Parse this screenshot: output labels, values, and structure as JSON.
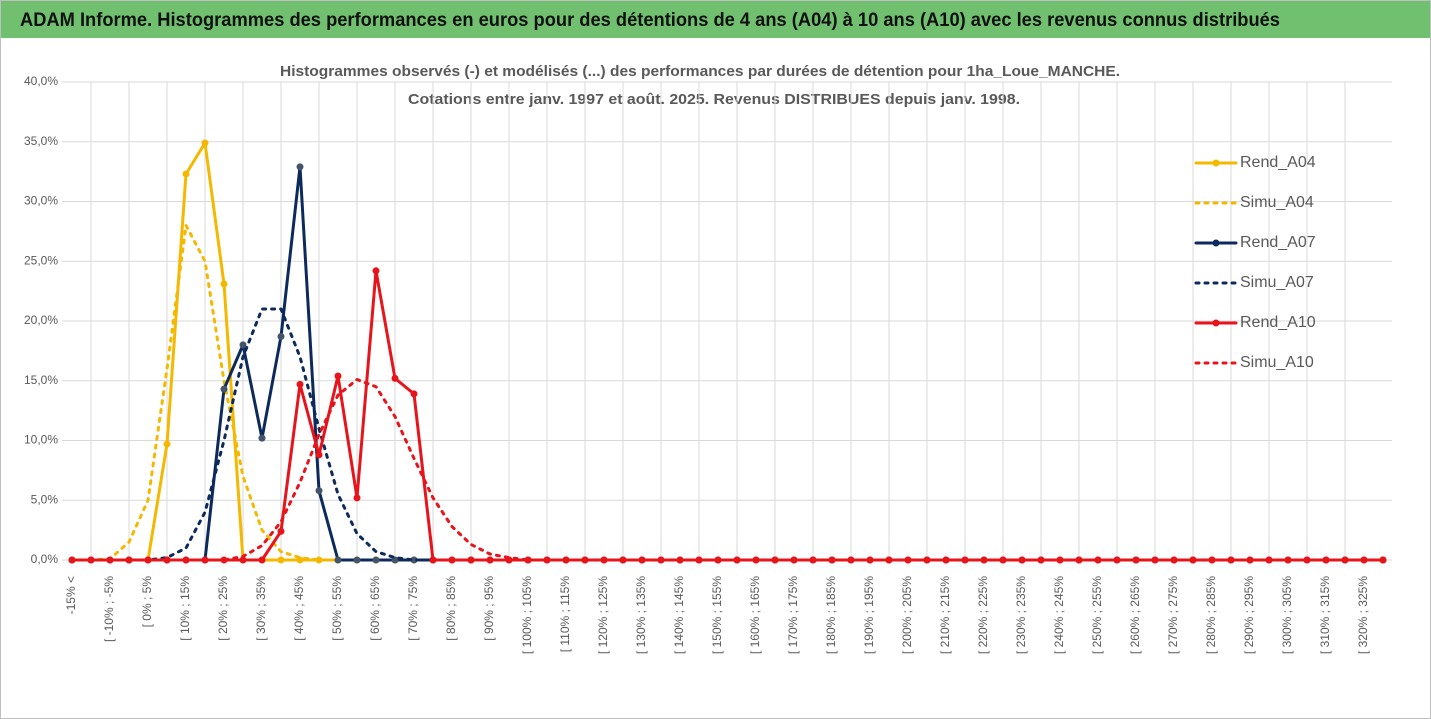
{
  "header": {
    "title": "ADAM Informe. Histogrammes des performances en euros pour des détentions de 4 ans (A04) à 10 ans (A10) avec les revenus connus distribués"
  },
  "chart_data": {
    "type": "line",
    "title": [
      "Histogrammes observés (-) et modélisés (...) des performances par durées de détention pour 1ha_Loue_MANCHE.",
      "Cotations entre janv. 1997 et août. 2025. Revenus DISTRIBUES depuis janv. 1998."
    ],
    "categories": [
      "-15% <",
      null,
      "[ -10% ; -5%",
      null,
      "[ 0% ; 5%",
      null,
      "[ 10% ; 15%",
      null,
      "[ 20% ; 25%",
      null,
      "[ 30% ; 35%",
      null,
      "[ 40% ; 45%",
      null,
      "[ 50% ; 55%",
      null,
      "[ 60% ; 65%",
      null,
      "[ 70% ; 75%",
      null,
      "[ 80% ; 85%",
      null,
      "[ 90% ; 95%",
      null,
      "[ 100% ; 105%",
      null,
      "[ 110% ; 115%",
      null,
      "[ 120% ; 125%",
      null,
      "[ 130% ; 135%",
      null,
      "[ 140% ; 145%",
      null,
      "[ 150% ; 155%",
      null,
      "[ 160% ; 165%",
      null,
      "[ 170% ; 175%",
      null,
      "[ 180% ; 185%",
      null,
      "[ 190% ; 195%",
      null,
      "[ 200% ; 205%",
      null,
      "[ 210% ; 215%",
      null,
      "[ 220% ; 225%",
      null,
      "[ 230% ; 235%",
      null,
      "[ 240% ; 245%",
      null,
      "[ 250% ; 255%",
      null,
      "[ 260% ; 265%",
      null,
      "[ 270% ; 275%",
      null,
      "[ 280% ; 285%",
      null,
      "[ 290% ; 295%",
      null,
      "[ 300% ; 305%",
      null,
      "[ 310% ; 315%",
      null,
      "[ 320% ; 325%",
      null
    ],
    "series": [
      {
        "name": "Rend_A04",
        "color": "#f5b800",
        "dash": false,
        "values": [
          0,
          0,
          0,
          0,
          0,
          9.7,
          32.3,
          34.9,
          23.1,
          0,
          0,
          0,
          0,
          0,
          0,
          0,
          0,
          0,
          0,
          0,
          0,
          0,
          0,
          0,
          0,
          0,
          0,
          0,
          0,
          0,
          0,
          0,
          0,
          0,
          0,
          0,
          0,
          0,
          0,
          0,
          0,
          0,
          0,
          0,
          0,
          0,
          0,
          0,
          0,
          0,
          0,
          0,
          0,
          0,
          0,
          0,
          0,
          0,
          0,
          0,
          0,
          0,
          0,
          0,
          0,
          0,
          0,
          0,
          0,
          0
        ]
      },
      {
        "name": "Simu_A04",
        "color": "#f5b800",
        "dash": true,
        "values": [
          0,
          0,
          0.1,
          1.5,
          5,
          16,
          28,
          25,
          15,
          7,
          2.5,
          0.7,
          0.2,
          0,
          0,
          0,
          0,
          0,
          0,
          0,
          0,
          0,
          0,
          0,
          0,
          0,
          0,
          0,
          0,
          0,
          0,
          0,
          0,
          0,
          0,
          0,
          0,
          0,
          0,
          0,
          0,
          0,
          0,
          0,
          0,
          0,
          0,
          0,
          0,
          0,
          0,
          0,
          0,
          0,
          0,
          0,
          0,
          0,
          0,
          0,
          0,
          0,
          0,
          0,
          0,
          0,
          0,
          0,
          0,
          0
        ]
      },
      {
        "name": "Rend_A07",
        "color": "#0d2a5c",
        "dash": false,
        "values": [
          0,
          0,
          0,
          0,
          0,
          0,
          0,
          0,
          14.3,
          18,
          10.2,
          18.7,
          32.9,
          5.8,
          0,
          0,
          0,
          0,
          0,
          0,
          0,
          0,
          0,
          0,
          0,
          0,
          0,
          0,
          0,
          0,
          0,
          0,
          0,
          0,
          0,
          0,
          0,
          0,
          0,
          0,
          0,
          0,
          0,
          0,
          0,
          0,
          0,
          0,
          0,
          0,
          0,
          0,
          0,
          0,
          0,
          0,
          0,
          0,
          0,
          0,
          0,
          0,
          0,
          0,
          0,
          0,
          0,
          0,
          0,
          0
        ]
      },
      {
        "name": "Simu_A07",
        "color": "#0d2a5c",
        "dash": true,
        "values": [
          0,
          0,
          0,
          0,
          0,
          0.2,
          1,
          4,
          10,
          17,
          21,
          21,
          17,
          11,
          5.5,
          2.2,
          0.7,
          0.2,
          0,
          0,
          0,
          0,
          0,
          0,
          0,
          0,
          0,
          0,
          0,
          0,
          0,
          0,
          0,
          0,
          0,
          0,
          0,
          0,
          0,
          0,
          0,
          0,
          0,
          0,
          0,
          0,
          0,
          0,
          0,
          0,
          0,
          0,
          0,
          0,
          0,
          0,
          0,
          0,
          0,
          0,
          0,
          0,
          0,
          0,
          0,
          0,
          0,
          0,
          0,
          0
        ]
      },
      {
        "name": "Rend_A10",
        "color": "#e8141b",
        "dash": false,
        "values": [
          0,
          0,
          0,
          0,
          0,
          0,
          0,
          0,
          0,
          0,
          0,
          2.4,
          14.7,
          8.8,
          15.4,
          5.2,
          24.2,
          15.2,
          13.9,
          0,
          0,
          0,
          0,
          0,
          0,
          0,
          0,
          0,
          0,
          0,
          0,
          0,
          0,
          0,
          0,
          0,
          0,
          0,
          0,
          0,
          0,
          0,
          0,
          0,
          0,
          0,
          0,
          0,
          0,
          0,
          0,
          0,
          0,
          0,
          0,
          0,
          0,
          0,
          0,
          0,
          0,
          0,
          0,
          0,
          0,
          0,
          0,
          0,
          0,
          0
        ]
      },
      {
        "name": "Simu_A10",
        "color": "#e8141b",
        "dash": true,
        "values": [
          0,
          0,
          0,
          0,
          0,
          0,
          0,
          0,
          0,
          0.3,
          1.2,
          3.2,
          6.5,
          10.5,
          13.8,
          15.1,
          14.5,
          12,
          8.5,
          5.2,
          2.8,
          1.3,
          0.5,
          0.2,
          0,
          0,
          0,
          0,
          0,
          0,
          0,
          0,
          0,
          0,
          0,
          0,
          0,
          0,
          0,
          0,
          0,
          0,
          0,
          0,
          0,
          0,
          0,
          0,
          0,
          0,
          0,
          0,
          0,
          0,
          0,
          0,
          0,
          0,
          0,
          0,
          0,
          0,
          0,
          0,
          0,
          0,
          0,
          0,
          0,
          0
        ]
      }
    ],
    "ylim": [
      0,
      40
    ],
    "yticks": [
      {
        "value": 0,
        "label": "0,0%"
      },
      {
        "value": 5,
        "label": "5,0%"
      },
      {
        "value": 10,
        "label": "10,0%"
      },
      {
        "value": 15,
        "label": "15,0%"
      },
      {
        "value": 20,
        "label": "20,0%"
      },
      {
        "value": 25,
        "label": "25,0%"
      },
      {
        "value": 30,
        "label": "30,0%"
      },
      {
        "value": 35,
        "label": "35,0%"
      },
      {
        "value": 40,
        "label": "40,0%"
      }
    ],
    "grid": true,
    "legend": "right"
  }
}
